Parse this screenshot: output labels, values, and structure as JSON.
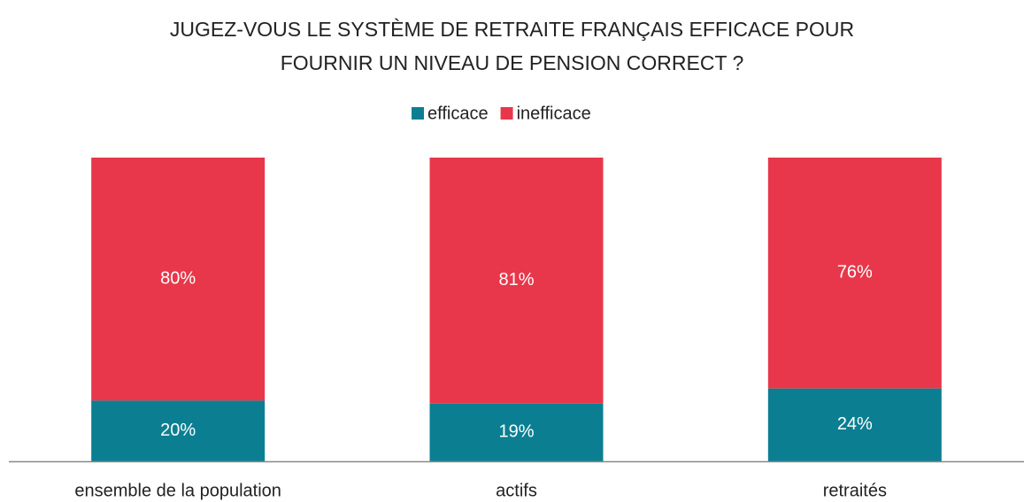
{
  "chart_data": {
    "type": "stacked_bar",
    "title": "JUGEZ-VOUS LE SYSTÈME DE RETRAITE FRANÇAIS EFFICACE POUR FOURNIR UN NIVEAU DE PENSION CORRECT ?",
    "categories": [
      "ensemble de la population",
      "actifs",
      "retraités"
    ],
    "series": [
      {
        "name": "efficace",
        "color": "#0b7f91",
        "values": [
          20,
          19,
          24
        ],
        "value_labels": [
          "20%",
          "19%",
          "24%"
        ]
      },
      {
        "name": "inefficace",
        "color": "#e8374a",
        "values": [
          80,
          81,
          76
        ],
        "value_labels": [
          "80%",
          "81%",
          "76%"
        ]
      }
    ],
    "legend": "top"
  }
}
